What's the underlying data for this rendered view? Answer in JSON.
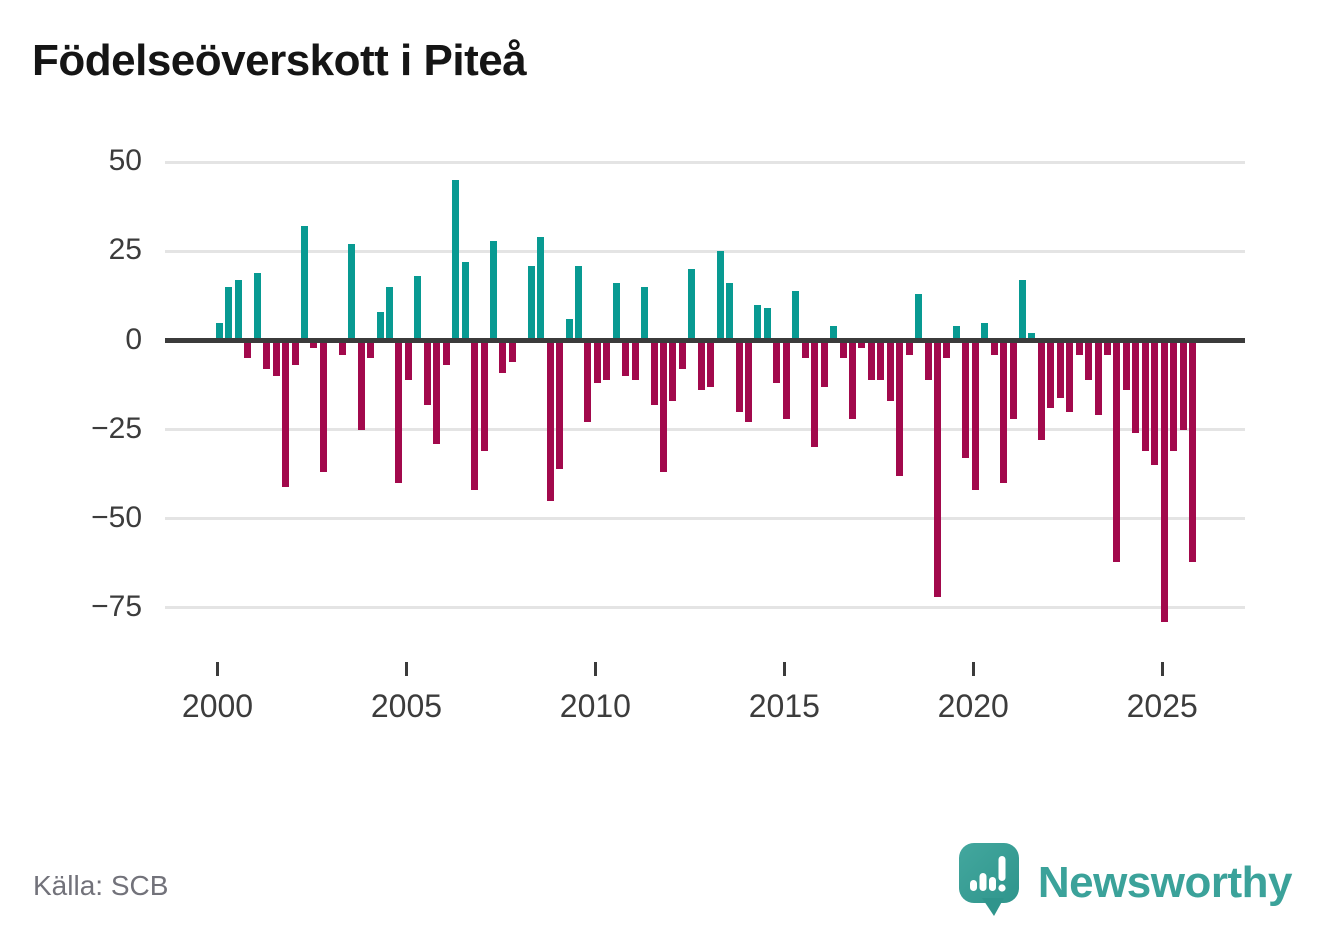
{
  "chart_data": {
    "type": "bar",
    "title": "Födelseöverskott i Piteå",
    "frequency": "quarterly",
    "start_quarter": "2000 Q1",
    "end_quarter": "2025 Q4",
    "values": [
      5,
      15,
      17,
      -5,
      19,
      -8,
      -10,
      -41,
      -7,
      32,
      -2,
      -37,
      0,
      -4,
      27,
      -25,
      -5,
      8,
      15,
      -40,
      -11,
      18,
      -18,
      -29,
      -7,
      45,
      22,
      -42,
      -31,
      28,
      -9,
      -6,
      0,
      21,
      29,
      -45,
      -36,
      6,
      21,
      -23,
      -12,
      -11,
      16,
      -10,
      -11,
      15,
      -18,
      -37,
      -17,
      -8,
      20,
      -14,
      -13,
      25,
      16,
      -20,
      -23,
      10,
      9,
      -12,
      -22,
      14,
      -5,
      -30,
      -13,
      4,
      -5,
      -22,
      -2,
      -11,
      -11,
      -17,
      -38,
      -4,
      13,
      -11,
      -72,
      -5,
      4,
      -33,
      -42,
      5,
      -4,
      -40,
      -22,
      17,
      2,
      -28,
      -19,
      -16,
      -20,
      -4,
      -11,
      -21,
      -4,
      -62,
      -14,
      -26,
      -31,
      -35,
      -79,
      -31,
      -25,
      -62
    ],
    "y_ticks": [
      {
        "label": "50",
        "value": 50
      },
      {
        "label": "25",
        "value": 25
      },
      {
        "label": "0",
        "value": 0
      },
      {
        "label": "−25",
        "value": -25
      },
      {
        "label": "−50",
        "value": -50
      },
      {
        "label": "−75",
        "value": -75
      }
    ],
    "x_ticks": [
      {
        "label": "2000",
        "year": 2000
      },
      {
        "label": "2005",
        "year": 2005
      },
      {
        "label": "2010",
        "year": 2010
      },
      {
        "label": "2015",
        "year": 2015
      },
      {
        "label": "2020",
        "year": 2020
      },
      {
        "label": "2025",
        "year": 2025
      }
    ],
    "ylim": [
      -85,
      55
    ],
    "grid": true,
    "legend": "none",
    "positive_color": "#089a92",
    "negative_color": "#a2094c",
    "axis_color": "#3b3b3b",
    "gridline_color": "#e4e4e4"
  },
  "footer": {
    "source": "Källa: SCB",
    "brand": "Newsworthy",
    "brand_color": "#3ba29a"
  }
}
